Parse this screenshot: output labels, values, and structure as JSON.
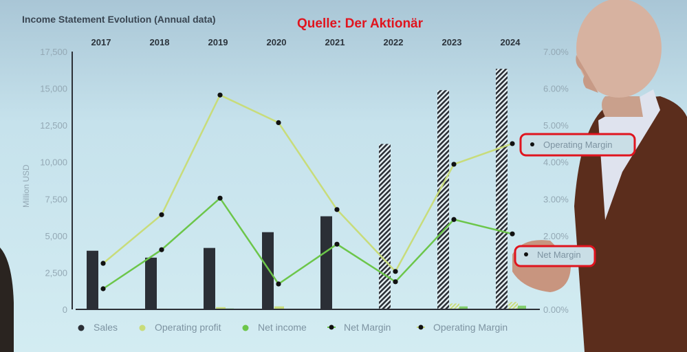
{
  "source_note": "Quelle: Der Aktionär",
  "colors": {
    "sales": "#2b2f36",
    "operating_profit": "#c8dc7a",
    "net_income": "#6cc64a",
    "marker": "#111111",
    "annotation": "#e0141e",
    "axis_text": "#93a8b4"
  },
  "chart_data": {
    "type": "bar",
    "title": "Income Statement Evolution (Annual data)",
    "ylabel": "Million USD",
    "ylim": [
      0,
      17500
    ],
    "y_ticks": [
      "0",
      "2,500",
      "5,000",
      "7,500",
      "10,000",
      "12,500",
      "15,000",
      "17,500"
    ],
    "y2lim": [
      0,
      7
    ],
    "y2_ticks": [
      "0.00%",
      "2.00%",
      "3.00%",
      "4.00%",
      "5.00%",
      "6.00%",
      "7.00%"
    ],
    "y2_tick_values": [
      0,
      2,
      3,
      4,
      5,
      6,
      7
    ],
    "categories": [
      "2017",
      "2018",
      "2019",
      "2020",
      "2021",
      "2022",
      "2023",
      "2024"
    ],
    "estimated_years": [
      "2022",
      "2023",
      "2024"
    ],
    "grid": false,
    "legend_position": "bottom",
    "series": [
      {
        "name": "Sales",
        "kind": "bar",
        "axis": "left",
        "values": [
          3980,
          3510,
          4170,
          5240,
          6320,
          11230,
          14880,
          16330
        ]
      },
      {
        "name": "Operating profit",
        "kind": "bar",
        "axis": "left",
        "values": [
          50,
          50,
          150,
          200,
          50,
          0,
          400,
          500
        ]
      },
      {
        "name": "Net income",
        "kind": "bar",
        "axis": "left",
        "values": [
          20,
          20,
          60,
          30,
          30,
          0,
          200,
          250
        ]
      },
      {
        "name": "Net Margin",
        "kind": "line",
        "axis": "right",
        "unit": "%",
        "values": [
          0.56,
          1.62,
          3.02,
          0.69,
          1.77,
          0.75,
          2.44,
          2.05
        ]
      },
      {
        "name": "Operating Margin",
        "kind": "line",
        "axis": "right",
        "unit": "%",
        "values": [
          1.25,
          2.57,
          5.82,
          5.07,
          2.71,
          1.03,
          3.94,
          4.5
        ]
      }
    ],
    "callouts": [
      "Operating Margin",
      "Net Margin"
    ]
  }
}
